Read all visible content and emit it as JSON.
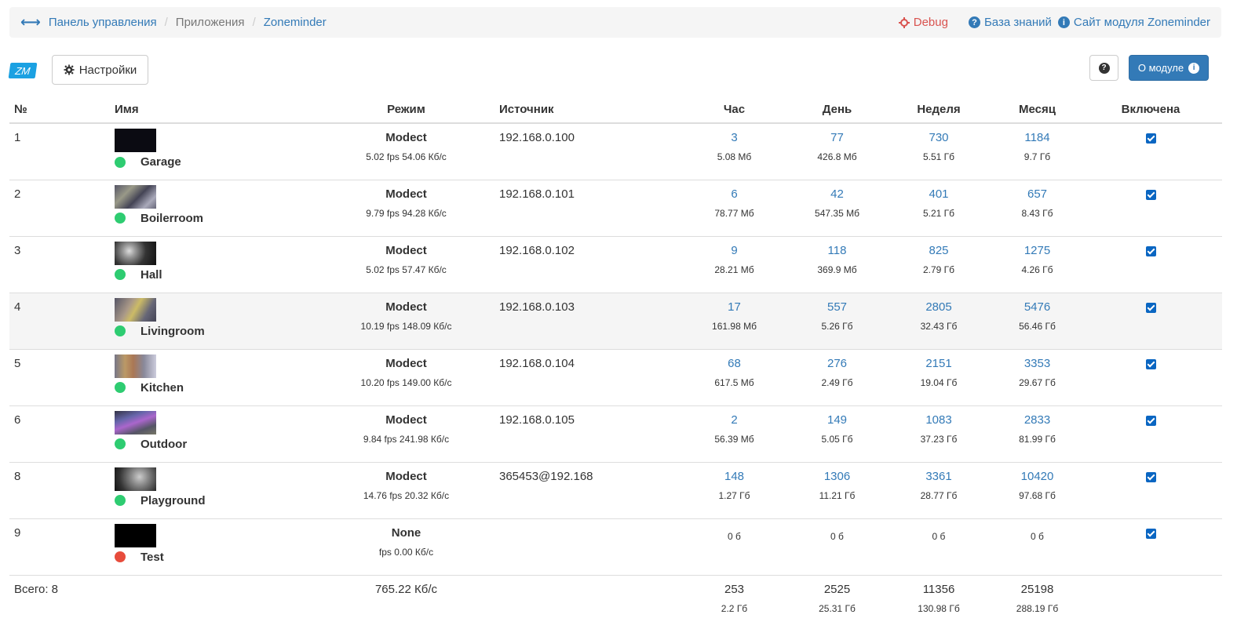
{
  "breadcrumb": {
    "items": [
      "Панель управления",
      "Приложения",
      "Zoneminder"
    ],
    "debug": "Debug",
    "kb": "База знаний",
    "site": "Сайт модуля Zoneminder"
  },
  "toolbar": {
    "logo": "ZM",
    "settings": "Настройки",
    "help": "?",
    "about": "О модуле"
  },
  "table": {
    "headers": [
      "№",
      "Имя",
      "Режим",
      "Источник",
      "Час",
      "День",
      "Неделя",
      "Месяц",
      "Включена"
    ],
    "rows": [
      {
        "num": "1",
        "name": "Garage",
        "status": "green",
        "thumb": "dark",
        "mode": "Modect",
        "stats": "5.02 fps 54.06 Кб/с",
        "source": "192.168.0.100",
        "hour": "3",
        "hour_size": "5.08 Мб",
        "day": "77",
        "day_size": "426.8 Мб",
        "week": "730",
        "week_size": "5.51 Гб",
        "month": "1184",
        "month_size": "9.7 Гб",
        "enabled": true
      },
      {
        "num": "2",
        "name": "Boilerroom",
        "status": "green",
        "thumb": "room",
        "mode": "Modect",
        "stats": "9.79 fps 94.28 Кб/с",
        "source": "192.168.0.101",
        "hour": "6",
        "hour_size": "78.77 Мб",
        "day": "42",
        "day_size": "547.35 Мб",
        "week": "401",
        "week_size": "5.21 Гб",
        "month": "657",
        "month_size": "8.43 Гб",
        "enabled": true
      },
      {
        "num": "3",
        "name": "Hall",
        "status": "green",
        "thumb": "hall",
        "mode": "Modect",
        "stats": "5.02 fps 57.47 Кб/с",
        "source": "192.168.0.102",
        "hour": "9",
        "hour_size": "28.21 Мб",
        "day": "118",
        "day_size": "369.9 Мб",
        "week": "825",
        "week_size": "2.79 Гб",
        "month": "1275",
        "month_size": "4.26 Гб",
        "enabled": true
      },
      {
        "num": "4",
        "name": "Livingroom",
        "status": "green",
        "thumb": "living",
        "mode": "Modect",
        "stats": "10.19 fps 148.09 Кб/с",
        "source": "192.168.0.103",
        "hour": "17",
        "hour_size": "161.98 Мб",
        "day": "557",
        "day_size": "5.26 Гб",
        "week": "2805",
        "week_size": "32.43 Гб",
        "month": "5476",
        "month_size": "56.46 Гб",
        "enabled": true,
        "highlight": true
      },
      {
        "num": "5",
        "name": "Kitchen",
        "status": "green",
        "thumb": "kitchen",
        "mode": "Modect",
        "stats": "10.20 fps 149.00 Кб/с",
        "source": "192.168.0.104",
        "hour": "68",
        "hour_size": "617.5 Мб",
        "day": "276",
        "day_size": "2.49 Гб",
        "week": "2151",
        "week_size": "19.04 Гб",
        "month": "3353",
        "month_size": "29.67 Гб",
        "enabled": true
      },
      {
        "num": "6",
        "name": "Outdoor",
        "status": "green",
        "thumb": "outdoor",
        "mode": "Modect",
        "stats": "9.84 fps 241.98 Кб/с",
        "source": "192.168.0.105",
        "hour": "2",
        "hour_size": "56.39 Мб",
        "day": "149",
        "day_size": "5.05 Гб",
        "week": "1083",
        "week_size": "37.23 Гб",
        "month": "2833",
        "month_size": "81.99 Гб",
        "enabled": true
      },
      {
        "num": "8",
        "name": "Playground",
        "status": "green",
        "thumb": "play",
        "mode": "Modect",
        "stats": "14.76 fps 20.32 Кб/с",
        "source": "365453@192.168",
        "hour": "148",
        "hour_size": "1.27 Гб",
        "day": "1306",
        "day_size": "11.21 Гб",
        "week": "3361",
        "week_size": "28.77 Гб",
        "month": "10420",
        "month_size": "97.68 Гб",
        "enabled": true
      },
      {
        "num": "9",
        "name": "Test",
        "status": "red",
        "thumb": "black",
        "mode": "None",
        "stats": "fps 0.00 Кб/с",
        "source": "",
        "hour": "",
        "hour_size": "0 б",
        "day": "",
        "day_size": "0 б",
        "week": "",
        "week_size": "0 б",
        "month": "",
        "month_size": "0 б",
        "enabled": true
      }
    ],
    "total": {
      "label": "Всего: 8",
      "bandwidth": "765.22 Кб/с",
      "hour": "253",
      "hour_size": "2.2 Гб",
      "day": "2525",
      "day_size": "25.31 Гб",
      "week": "11356",
      "week_size": "130.98 Гб",
      "month": "25198",
      "month_size": "288.19 Гб"
    }
  },
  "colors": {
    "link": "#337ab7",
    "status_green": "#2ecc71",
    "status_red": "#e74c3c",
    "debug": "#d9534f",
    "primary": "#337ab7"
  }
}
